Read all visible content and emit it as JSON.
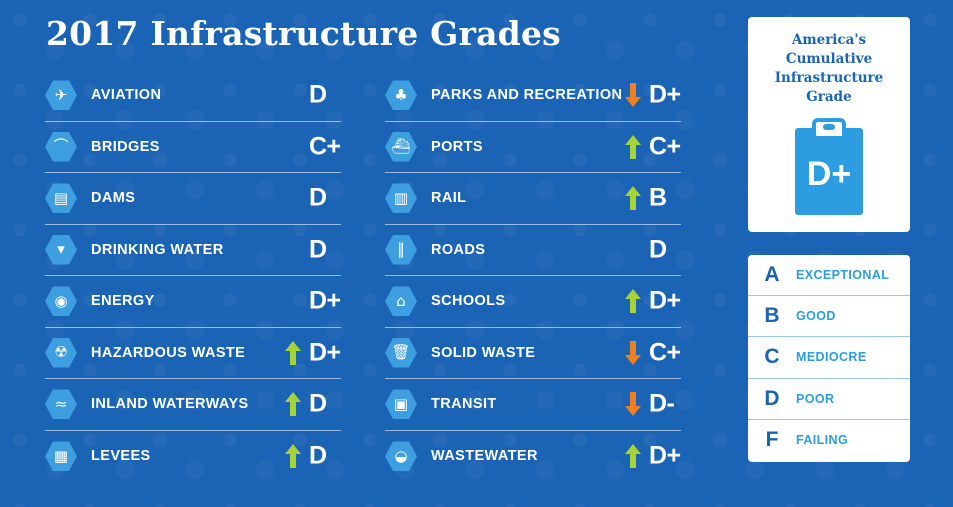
{
  "title": "2017 Infrastructure Grades",
  "colors": {
    "background": "#1b63b4",
    "icon_hex": "#3d9ee0",
    "arrow_up": "#a6d23a",
    "arrow_down": "#f07f21",
    "accent": "#2b9de0"
  },
  "left_column": [
    {
      "label": "AVIATION",
      "grade": "D",
      "trend": "none",
      "icon": "airplane-icon",
      "glyph": "✈"
    },
    {
      "label": "BRIDGES",
      "grade": "C+",
      "trend": "none",
      "icon": "bridge-icon",
      "glyph": "⌒"
    },
    {
      "label": "DAMS",
      "grade": "D",
      "trend": "none",
      "icon": "dam-icon",
      "glyph": "▤"
    },
    {
      "label": "DRINKING WATER",
      "grade": "D",
      "trend": "none",
      "icon": "water-glass-icon",
      "glyph": "▾"
    },
    {
      "label": "ENERGY",
      "grade": "D+",
      "trend": "none",
      "icon": "lightbulb-icon",
      "glyph": "◉"
    },
    {
      "label": "HAZARDOUS WASTE",
      "grade": "D+",
      "trend": "up",
      "icon": "hazard-barrel-icon",
      "glyph": "☢"
    },
    {
      "label": "INLAND WATERWAYS",
      "grade": "D",
      "trend": "up",
      "icon": "waterway-icon",
      "glyph": "≈"
    },
    {
      "label": "LEVEES",
      "grade": "D",
      "trend": "up",
      "icon": "levee-icon",
      "glyph": "▦"
    }
  ],
  "right_column": [
    {
      "label": "PARKS AND RECREATION",
      "grade": "D+",
      "trend": "down",
      "icon": "park-tree-icon",
      "glyph": "♣"
    },
    {
      "label": "PORTS",
      "grade": "C+",
      "trend": "up",
      "icon": "ship-icon",
      "glyph": "⛴"
    },
    {
      "label": "RAIL",
      "grade": "B",
      "trend": "up",
      "icon": "rail-icon",
      "glyph": "▥"
    },
    {
      "label": "ROADS",
      "grade": "D",
      "trend": "none",
      "icon": "road-icon",
      "glyph": "‖"
    },
    {
      "label": "SCHOOLS",
      "grade": "D+",
      "trend": "up",
      "icon": "school-icon",
      "glyph": "⌂"
    },
    {
      "label": "SOLID WASTE",
      "grade": "C+",
      "trend": "down",
      "icon": "trash-can-icon",
      "glyph": "🗑"
    },
    {
      "label": "TRANSIT",
      "grade": "D-",
      "trend": "down",
      "icon": "bus-icon",
      "glyph": "▣"
    },
    {
      "label": "WASTEWATER",
      "grade": "D+",
      "trend": "up",
      "icon": "toilet-icon",
      "glyph": "◒"
    }
  ],
  "cumulative": {
    "title_lines": [
      "America's",
      "Cumulative",
      "Infrastructure",
      "Grade"
    ],
    "grade": "D+"
  },
  "legend": [
    {
      "letter": "A",
      "word": "EXCEPTIONAL"
    },
    {
      "letter": "B",
      "word": "GOOD"
    },
    {
      "letter": "C",
      "word": "MEDIOCRE"
    },
    {
      "letter": "D",
      "word": "POOR"
    },
    {
      "letter": "F",
      "word": "FAILING"
    }
  ]
}
